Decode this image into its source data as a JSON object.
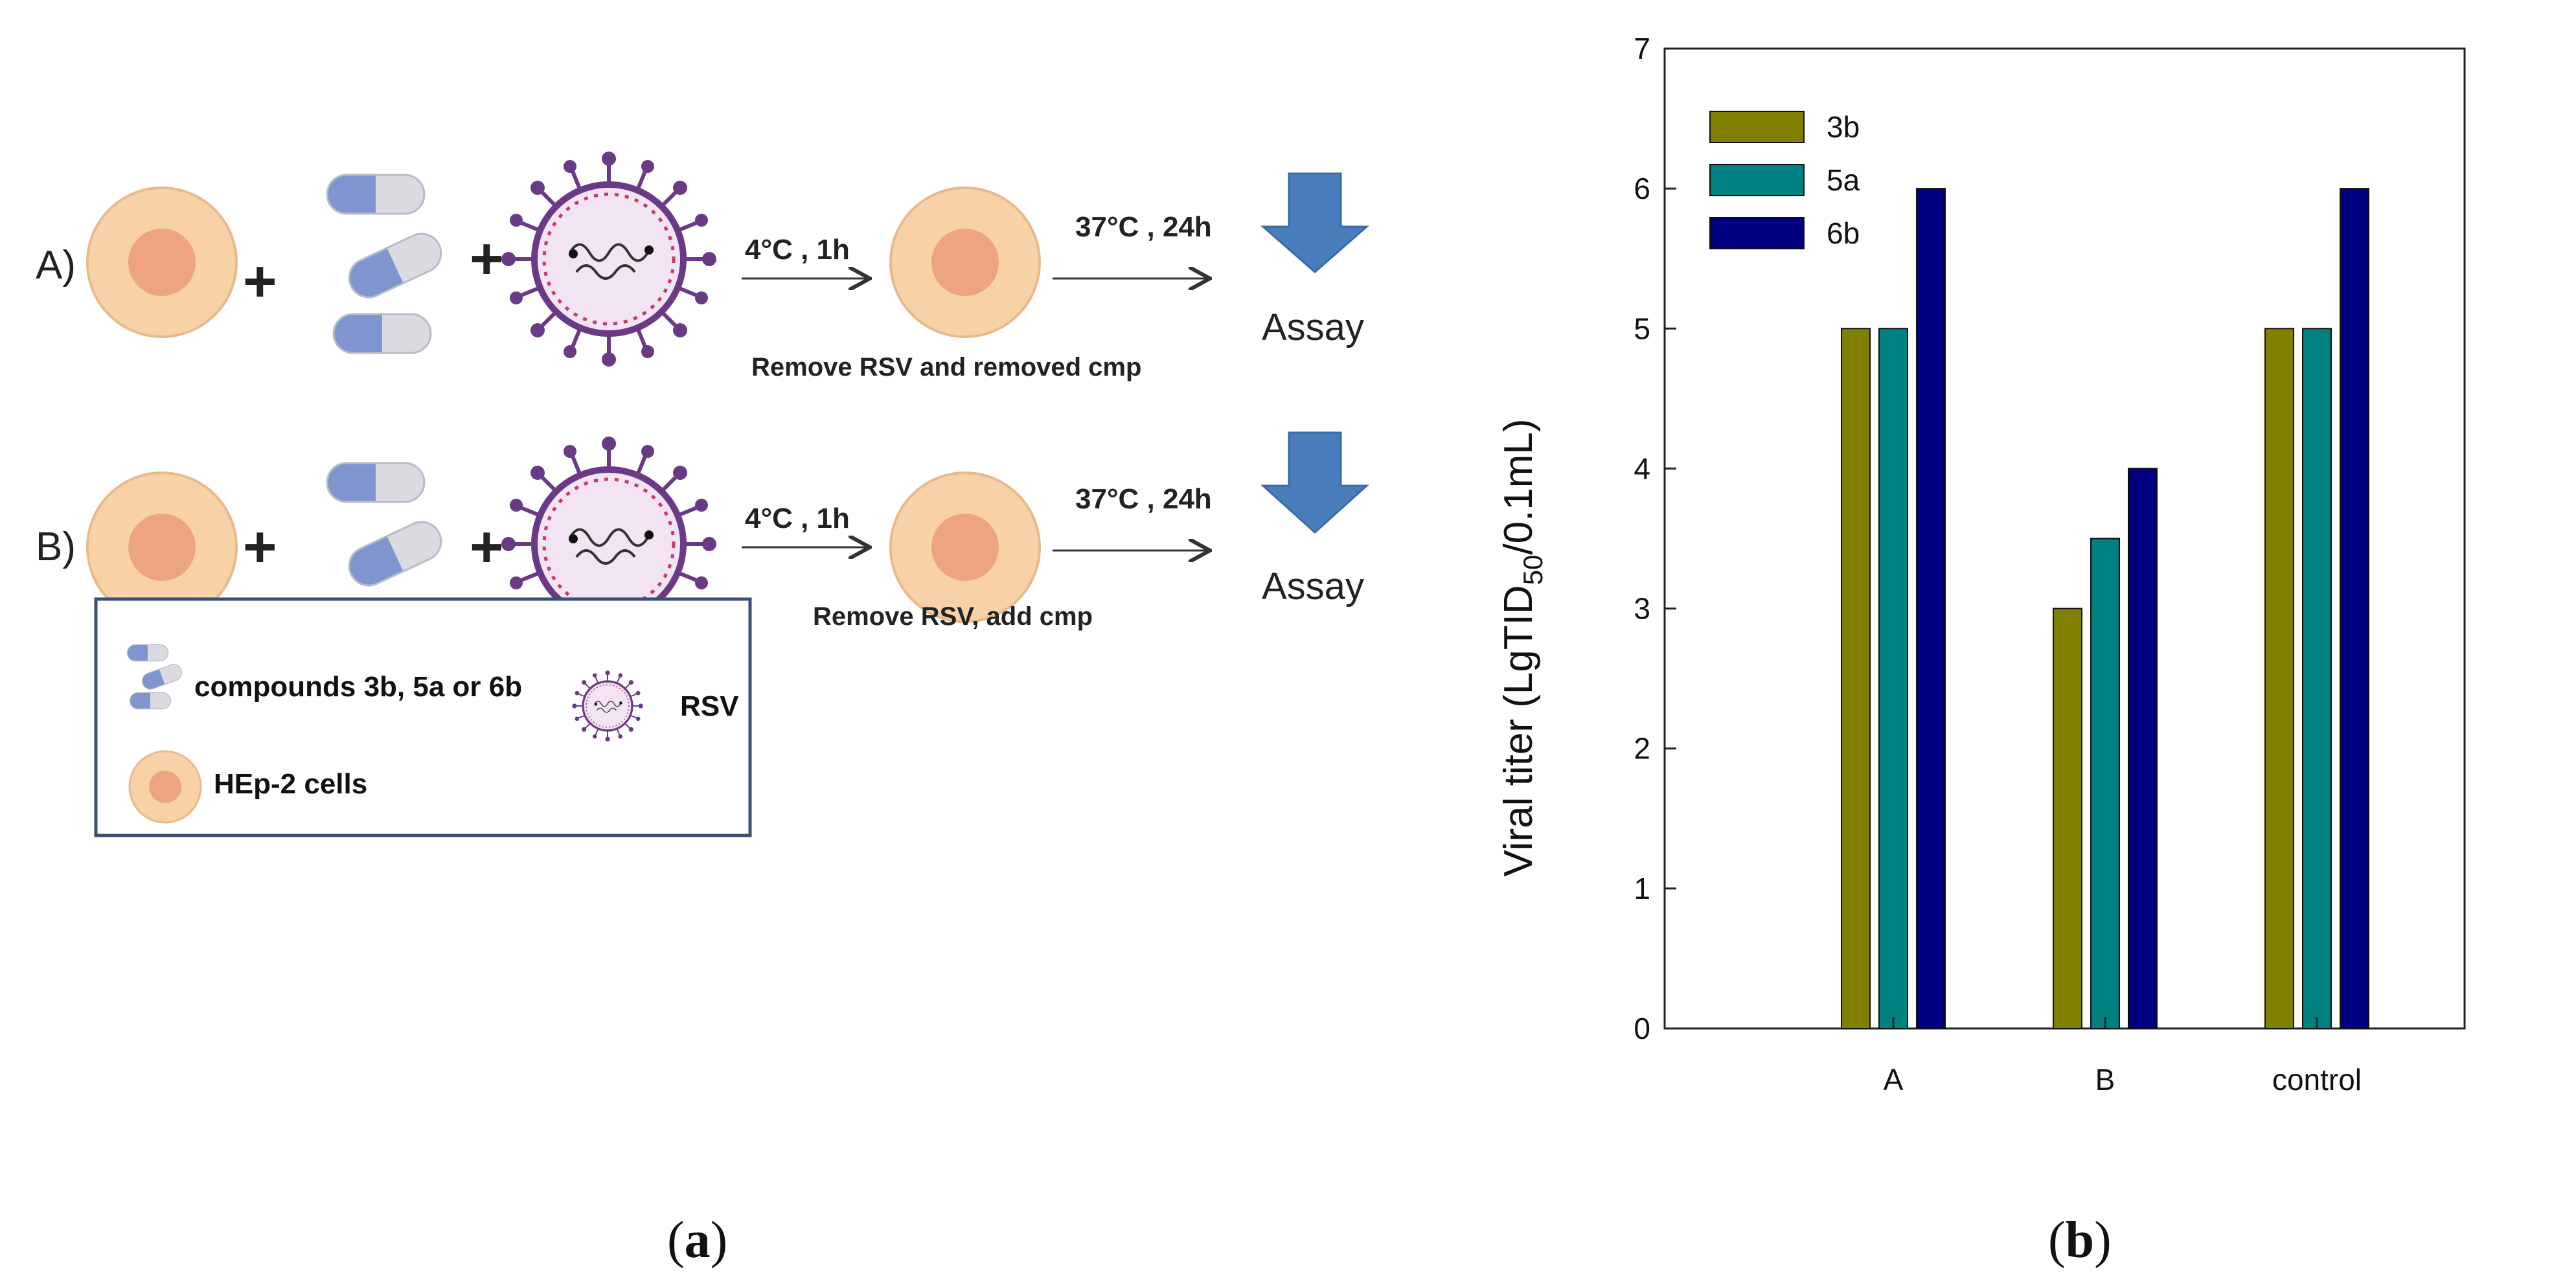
{
  "panel_a": {
    "label": "a",
    "rows": [
      {
        "label": "A)",
        "condition_first": "4°C , 1h",
        "condition_second": "37°C , 24h",
        "step_caption": "Remove RSV and removed cmp",
        "assay": "Assay"
      },
      {
        "label": "B)",
        "condition_first": "4°C , 1h",
        "condition_second": "37°C , 24h",
        "step_caption": "Remove RSV, add cmp",
        "assay": "Assay"
      }
    ],
    "plus_sign": "+",
    "legend": {
      "compounds_prefix": "compounds ",
      "compound_1": "3b",
      "sep_1": ", ",
      "compound_2": "5a",
      "sep_2": " or ",
      "compound_3": "6b",
      "virus_label": "RSV",
      "cells_label": "HEp-2 cells"
    },
    "colors": {
      "cell_outer": "#f8d2a6",
      "cell_inner": "#eea480",
      "capsule_blue": "#7f95cf",
      "capsule_grey": "#d9dbe0",
      "virus": "#6b3a86",
      "arrow_blue": "#4a7ebb"
    }
  },
  "panel_b": {
    "label": "b"
  },
  "chart_data": {
    "type": "bar",
    "categories": [
      "A",
      "B",
      "control"
    ],
    "series": [
      {
        "name": "3b",
        "color": "#808000",
        "values": [
          5,
          3,
          5
        ]
      },
      {
        "name": "5a",
        "color": "#008080",
        "values": [
          5,
          3.5,
          5
        ]
      },
      {
        "name": "6b",
        "color": "#000080",
        "values": [
          6,
          4,
          6
        ]
      }
    ],
    "ylabel_main": "Viral titer (LgTID",
    "ylabel_sub": "50",
    "ylabel_tail": "/0.1mL)",
    "ylim": [
      0,
      7
    ],
    "yticks": [
      0,
      1,
      2,
      3,
      4,
      5,
      6,
      7
    ],
    "legend_position": "top-left",
    "grid": false
  }
}
